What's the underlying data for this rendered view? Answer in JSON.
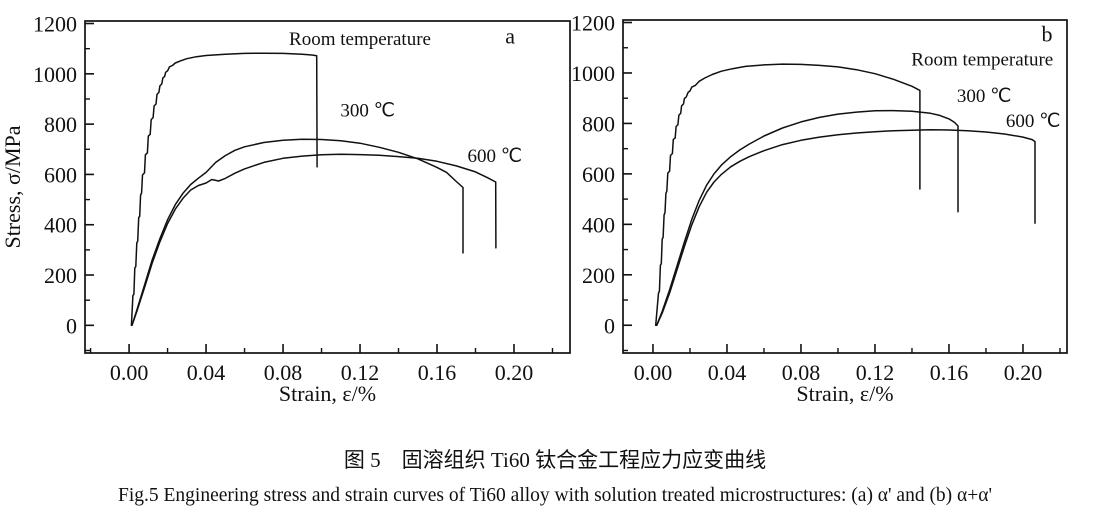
{
  "figure": {
    "caption_cn": "图 5　固溶组织 Ti60 钛合金工程应力应变曲线",
    "caption_en": "Fig.5   Engineering stress and strain curves of Ti60 alloy with solution treated microstructures: (a) α' and (b) α+α'"
  },
  "chart_data": [
    {
      "type": "line",
      "panel": "a",
      "xlabel": "Strain, ε/%",
      "ylabel": "Stress, σ/MPa",
      "xlim": [
        -0.0229,
        0.2291
      ],
      "ylim": [
        -110,
        1210
      ],
      "xticks": [
        0.0,
        0.04,
        0.08,
        0.12,
        0.16,
        0.2
      ],
      "xticks_minor": [
        -0.02,
        0.02,
        0.06,
        0.1,
        0.14,
        0.18,
        0.22
      ],
      "yticks": [
        0,
        200,
        400,
        600,
        800,
        1000,
        1200
      ],
      "yticks_minor": [
        -100,
        100,
        300,
        500,
        700,
        900,
        1100
      ],
      "grid": false,
      "legend_position": "inline-annotations",
      "panel_letter": {
        "text": "a",
        "x": 0.198,
        "y": 1120
      },
      "annotations": [
        {
          "text": "Room temperature",
          "x": 0.12,
          "y": 1115
        },
        {
          "text": "300  ℃",
          "x": 0.124,
          "y": 830
        },
        {
          "text": "600  ℃",
          "x": 0.19,
          "y": 650
        }
      ],
      "series": [
        {
          "name": "Room temperature",
          "points": [
            [
              0.0012,
              0
            ],
            [
              0.002,
              118
            ],
            [
              0.0025,
              124
            ],
            [
              0.003,
              228
            ],
            [
              0.0035,
              234
            ],
            [
              0.004,
              328
            ],
            [
              0.0045,
              334
            ],
            [
              0.005,
              428
            ],
            [
              0.0055,
              434
            ],
            [
              0.006,
              518
            ],
            [
              0.0065,
              526
            ],
            [
              0.007,
              598
            ],
            [
              0.008,
              606
            ],
            [
              0.0085,
              678
            ],
            [
              0.0095,
              686
            ],
            [
              0.01,
              752
            ],
            [
              0.011,
              760
            ],
            [
              0.0115,
              818
            ],
            [
              0.0125,
              826
            ],
            [
              0.013,
              872
            ],
            [
              0.014,
              880
            ],
            [
              0.0145,
              918
            ],
            [
              0.0155,
              926
            ],
            [
              0.016,
              952
            ],
            [
              0.017,
              960
            ],
            [
              0.0175,
              983
            ],
            [
              0.0185,
              990
            ],
            [
              0.019,
              1006
            ],
            [
              0.02,
              1012
            ],
            [
              0.021,
              1028
            ],
            [
              0.0225,
              1033
            ],
            [
              0.024,
              1043
            ],
            [
              0.027,
              1052
            ],
            [
              0.03,
              1060
            ],
            [
              0.035,
              1068
            ],
            [
              0.04,
              1073
            ],
            [
              0.05,
              1078
            ],
            [
              0.06,
              1081
            ],
            [
              0.07,
              1082
            ],
            [
              0.08,
              1081
            ],
            [
              0.09,
              1078
            ],
            [
              0.095,
              1075
            ],
            [
              0.0975,
              1072
            ],
            [
              0.0977,
              630
            ]
          ]
        },
        {
          "name": "300 ℃",
          "points": [
            [
              0.0015,
              0
            ],
            [
              0.004,
              60
            ],
            [
              0.008,
              160
            ],
            [
              0.012,
              260
            ],
            [
              0.016,
              345
            ],
            [
              0.02,
              420
            ],
            [
              0.024,
              480
            ],
            [
              0.028,
              525
            ],
            [
              0.032,
              560
            ],
            [
              0.036,
              585
            ],
            [
              0.04,
              608
            ],
            [
              0.045,
              648
            ],
            [
              0.05,
              675
            ],
            [
              0.055,
              696
            ],
            [
              0.06,
              710
            ],
            [
              0.07,
              727
            ],
            [
              0.08,
              736
            ],
            [
              0.09,
              740
            ],
            [
              0.1,
              739
            ],
            [
              0.11,
              734
            ],
            [
              0.12,
              724
            ],
            [
              0.13,
              708
            ],
            [
              0.14,
              688
            ],
            [
              0.15,
              662
            ],
            [
              0.16,
              628
            ],
            [
              0.165,
              608
            ],
            [
              0.17,
              572
            ],
            [
              0.1735,
              548
            ],
            [
              0.1735,
              288
            ]
          ]
        },
        {
          "name": "600 ℃",
          "points": [
            [
              0.0015,
              0
            ],
            [
              0.004,
              55
            ],
            [
              0.008,
              150
            ],
            [
              0.012,
              248
            ],
            [
              0.016,
              332
            ],
            [
              0.02,
              405
            ],
            [
              0.024,
              462
            ],
            [
              0.028,
              505
            ],
            [
              0.032,
              538
            ],
            [
              0.036,
              556
            ],
            [
              0.04,
              566
            ],
            [
              0.043,
              580
            ],
            [
              0.0465,
              574
            ],
            [
              0.05,
              584
            ],
            [
              0.055,
              605
            ],
            [
              0.06,
              622
            ],
            [
              0.07,
              648
            ],
            [
              0.08,
              664
            ],
            [
              0.09,
              673
            ],
            [
              0.1,
              678
            ],
            [
              0.11,
              680
            ],
            [
              0.12,
              679
            ],
            [
              0.13,
              676
            ],
            [
              0.14,
              671
            ],
            [
              0.15,
              664
            ],
            [
              0.16,
              652
            ],
            [
              0.17,
              634
            ],
            [
              0.18,
              610
            ],
            [
              0.186,
              588
            ],
            [
              0.1905,
              570
            ],
            [
              0.1906,
              308
            ]
          ]
        }
      ]
    },
    {
      "type": "line",
      "panel": "b",
      "xlabel": "Strain, ε/%",
      "ylabel": "",
      "xlim": [
        -0.0162,
        0.2238
      ],
      "ylim": [
        -110,
        1210
      ],
      "xticks": [
        0.0,
        0.04,
        0.08,
        0.12,
        0.16,
        0.2
      ],
      "xticks_minor": [
        0.02,
        0.06,
        0.1,
        0.14,
        0.18,
        0.22
      ],
      "yticks": [
        0,
        200,
        400,
        600,
        800,
        1000,
        1200
      ],
      "yticks_minor": [
        -100,
        100,
        300,
        500,
        700,
        900,
        1100
      ],
      "grid": false,
      "legend_position": "inline-annotations",
      "panel_letter": {
        "text": "b",
        "x": 0.213,
        "y": 1125
      },
      "annotations": [
        {
          "text": "Room temperature",
          "x": 0.178,
          "y": 1030
        },
        {
          "text": "300  ℃",
          "x": 0.179,
          "y": 885
        },
        {
          "text": "600  ℃",
          "x": 0.2055,
          "y": 785
        }
      ],
      "series": [
        {
          "name": "Room temperature",
          "points": [
            [
              0.0015,
              0
            ],
            [
              0.003,
              128
            ],
            [
              0.0035,
              134
            ],
            [
              0.004,
              238
            ],
            [
              0.0045,
              244
            ],
            [
              0.005,
              342
            ],
            [
              0.0055,
              348
            ],
            [
              0.006,
              438
            ],
            [
              0.0065,
              446
            ],
            [
              0.007,
              523
            ],
            [
              0.0075,
              531
            ],
            [
              0.008,
              603
            ],
            [
              0.009,
              611
            ],
            [
              0.0095,
              673
            ],
            [
              0.0105,
              681
            ],
            [
              0.011,
              736
            ],
            [
              0.012,
              743
            ],
            [
              0.0125,
              788
            ],
            [
              0.0135,
              795
            ],
            [
              0.014,
              833
            ],
            [
              0.015,
              840
            ],
            [
              0.0155,
              870
            ],
            [
              0.0165,
              877
            ],
            [
              0.017,
              899
            ],
            [
              0.018,
              905
            ],
            [
              0.019,
              923
            ],
            [
              0.02,
              929
            ],
            [
              0.021,
              944
            ],
            [
              0.023,
              951
            ],
            [
              0.025,
              967
            ],
            [
              0.028,
              980
            ],
            [
              0.032,
              994
            ],
            [
              0.037,
              1007
            ],
            [
              0.043,
              1017
            ],
            [
              0.05,
              1026
            ],
            [
              0.06,
              1032
            ],
            [
              0.07,
              1035
            ],
            [
              0.08,
              1034
            ],
            [
              0.09,
              1030
            ],
            [
              0.1,
              1024
            ],
            [
              0.11,
              1013
            ],
            [
              0.12,
              997
            ],
            [
              0.13,
              975
            ],
            [
              0.14,
              947
            ],
            [
              0.1443,
              931
            ],
            [
              0.1443,
              540
            ]
          ]
        },
        {
          "name": "300 ℃",
          "points": [
            [
              0.002,
              0
            ],
            [
              0.005,
              55
            ],
            [
              0.009,
              140
            ],
            [
              0.013,
              235
            ],
            [
              0.017,
              330
            ],
            [
              0.021,
              420
            ],
            [
              0.025,
              495
            ],
            [
              0.029,
              555
            ],
            [
              0.033,
              600
            ],
            [
              0.037,
              635
            ],
            [
              0.042,
              668
            ],
            [
              0.047,
              695
            ],
            [
              0.052,
              718
            ],
            [
              0.06,
              750
            ],
            [
              0.07,
              782
            ],
            [
              0.08,
              806
            ],
            [
              0.09,
              824
            ],
            [
              0.1,
              837
            ],
            [
              0.11,
              845
            ],
            [
              0.12,
              850
            ],
            [
              0.13,
              851
            ],
            [
              0.14,
              848
            ],
            [
              0.15,
              840
            ],
            [
              0.155,
              832
            ],
            [
              0.16,
              818
            ],
            [
              0.163,
              804
            ],
            [
              0.1649,
              790
            ],
            [
              0.1649,
              450
            ]
          ]
        },
        {
          "name": "600 ℃",
          "points": [
            [
              0.002,
              0
            ],
            [
              0.005,
              48
            ],
            [
              0.009,
              128
            ],
            [
              0.013,
              220
            ],
            [
              0.017,
              312
            ],
            [
              0.021,
              398
            ],
            [
              0.025,
              470
            ],
            [
              0.029,
              527
            ],
            [
              0.033,
              568
            ],
            [
              0.037,
              598
            ],
            [
              0.042,
              628
            ],
            [
              0.047,
              650
            ],
            [
              0.052,
              668
            ],
            [
              0.06,
              692
            ],
            [
              0.07,
              716
            ],
            [
              0.08,
              733
            ],
            [
              0.09,
              746
            ],
            [
              0.1,
              755
            ],
            [
              0.11,
              762
            ],
            [
              0.12,
              767
            ],
            [
              0.13,
              771
            ],
            [
              0.14,
              773
            ],
            [
              0.15,
              775
            ],
            [
              0.16,
              774
            ],
            [
              0.17,
              771
            ],
            [
              0.18,
              766
            ],
            [
              0.19,
              758
            ],
            [
              0.2,
              746
            ],
            [
              0.205,
              736
            ],
            [
              0.2065,
              728
            ],
            [
              0.2065,
              405
            ]
          ]
        }
      ]
    }
  ]
}
